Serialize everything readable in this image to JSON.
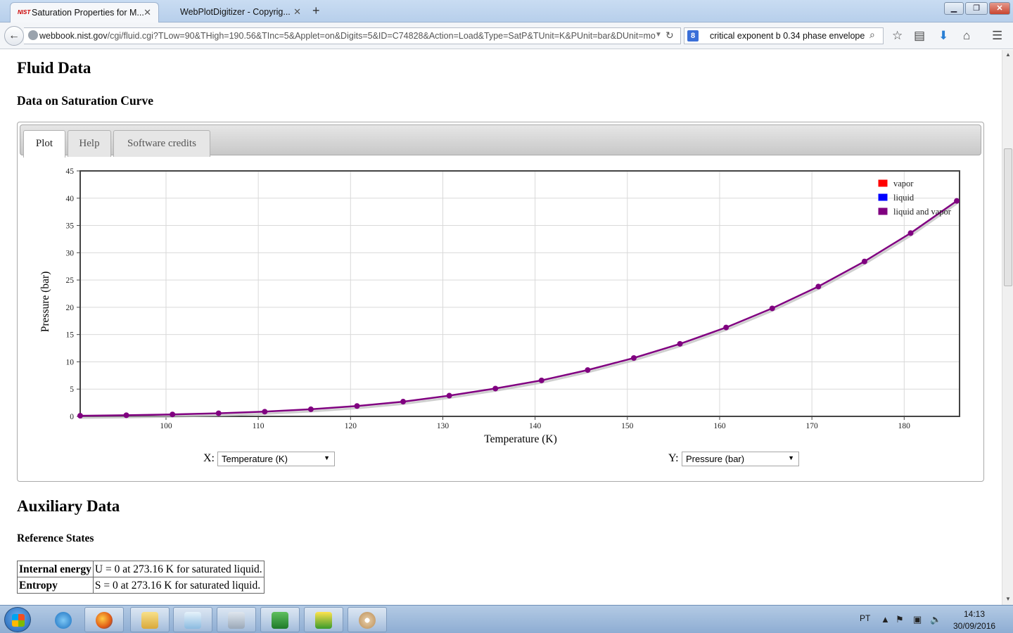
{
  "browser": {
    "tabs": [
      {
        "title": "Saturation Properties for M...",
        "favicon": "NIST",
        "active": true
      },
      {
        "title": "WebPlotDigitizer - Copyrig...",
        "active": false
      }
    ],
    "url_domain": "webbook.nist.gov",
    "url_rest": "/cgi/fluid.cgi?TLow=90&THigh=190.56&TInc=5&Applet=on&Digits=5&ID=C74828&Action=Load&Type=SatP&TUnit=K&PUnit=bar&DUnit=mo",
    "search_engine_icon": "8",
    "search_text": "critical exponent b 0.34 phase envelope"
  },
  "page": {
    "heading_fluid": "Fluid Data",
    "heading_saturation": "Data on Saturation Curve",
    "tabs": [
      "Plot",
      "Help",
      "Software credits"
    ],
    "x_selector_label": "X:",
    "x_selector_value": "Temperature (K)",
    "y_selector_label": "Y:",
    "y_selector_value": "Pressure (bar)",
    "heading_auxiliary": "Auxiliary Data",
    "heading_reference": "Reference States",
    "reference_states": [
      {
        "property": "Internal energy",
        "value": "U = 0 at 273.16 K for saturated liquid."
      },
      {
        "property": "Entropy",
        "value": "S = 0 at 273.16 K for saturated liquid."
      }
    ]
  },
  "chart_data": {
    "type": "line",
    "xlabel": "Temperature (K)",
    "ylabel": "Pressure (bar)",
    "xlim": [
      90.7,
      186
    ],
    "ylim": [
      0,
      45
    ],
    "xticks": [
      100,
      110,
      120,
      130,
      140,
      150,
      160,
      170,
      180
    ],
    "yticks": [
      0,
      5,
      10,
      15,
      20,
      25,
      30,
      35,
      40,
      45
    ],
    "grid": true,
    "legend_position": "top-right",
    "legend": [
      {
        "name": "vapor",
        "color": "#ff0000"
      },
      {
        "name": "liquid",
        "color": "#0000ff"
      },
      {
        "name": "liquid and vapor",
        "color": "#800080"
      }
    ],
    "series": [
      {
        "name": "liquid and vapor",
        "color": "#800080",
        "x": [
          90.7,
          95.7,
          100.7,
          105.7,
          110.7,
          115.7,
          120.7,
          125.7,
          130.7,
          135.7,
          140.7,
          145.7,
          150.7,
          155.7,
          160.7,
          165.7,
          170.7,
          175.7,
          180.7,
          185.7
        ],
        "y": [
          0.12,
          0.21,
          0.36,
          0.57,
          0.86,
          1.3,
          1.9,
          2.7,
          3.8,
          5.1,
          6.6,
          8.5,
          10.7,
          13.3,
          16.3,
          19.8,
          23.8,
          28.4,
          33.6,
          39.5
        ]
      }
    ]
  },
  "taskbar": {
    "lang": "PT",
    "time": "14:13",
    "date": "30/09/2016",
    "apps": [
      "ie-icon",
      "firefox-icon",
      "explorer-icon",
      "notepad-icon",
      "calculator-icon",
      "excel-icon",
      "pegapixel-icon",
      "paint-icon"
    ]
  }
}
